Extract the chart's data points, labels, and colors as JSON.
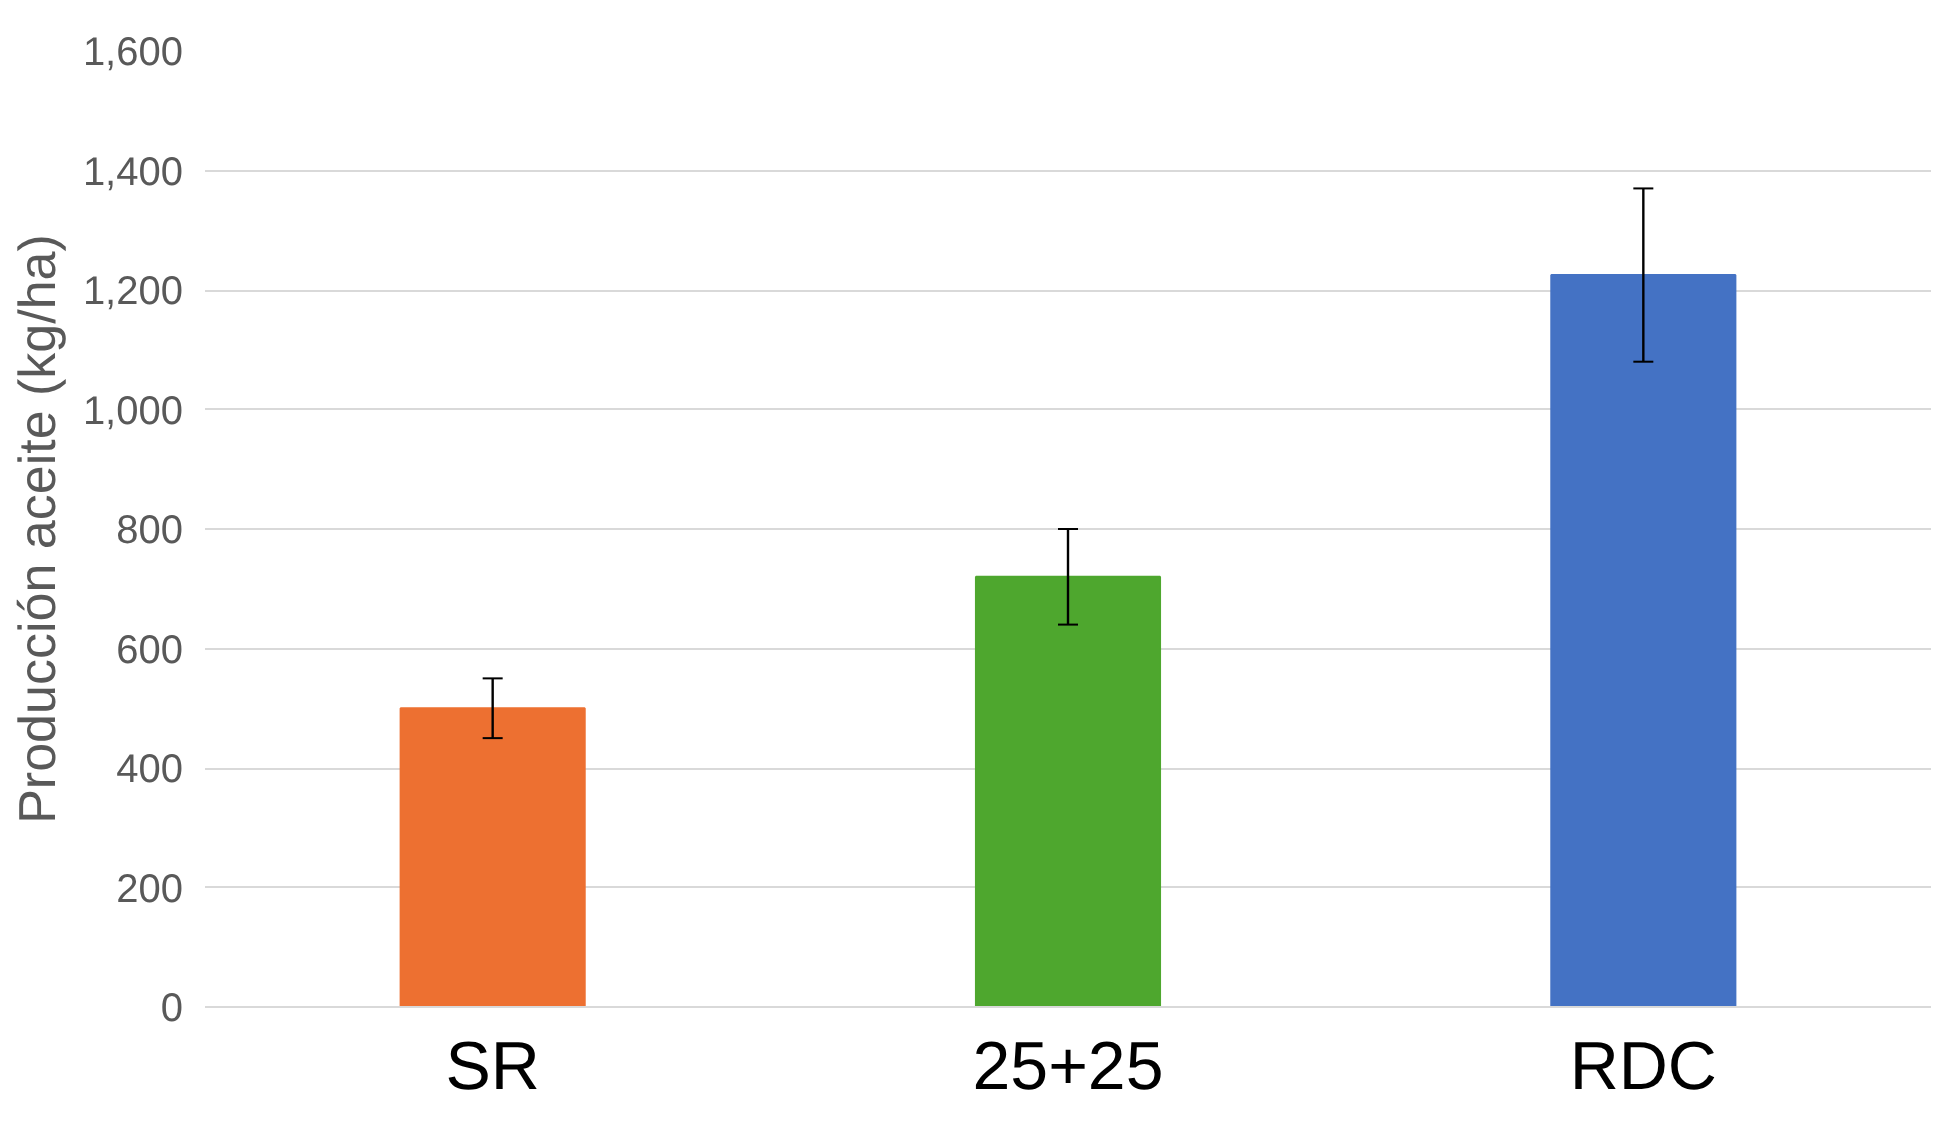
{
  "chart_data": {
    "type": "bar",
    "ylabel": "Producción aceite (kg/ha)",
    "categories": [
      "SR",
      "25+25",
      "RDC"
    ],
    "values": [
      500,
      720,
      1225
    ],
    "colors": [
      "#ed7031",
      "#4ea72e",
      "#4472c4"
    ],
    "errors": [
      50,
      80,
      145
    ],
    "ylim": [
      0,
      1600
    ],
    "yticks": [
      {
        "value": 0,
        "label": "0"
      },
      {
        "value": 200,
        "label": "200"
      },
      {
        "value": 400,
        "label": "400"
      },
      {
        "value": 600,
        "label": "600"
      },
      {
        "value": 800,
        "label": "800"
      },
      {
        "value": 1000,
        "label": "1,000"
      },
      {
        "value": 1200,
        "label": "1,200"
      },
      {
        "value": 1400,
        "label": "1,400"
      },
      {
        "value": 1600,
        "label": "1,600"
      }
    ],
    "grid": "y"
  }
}
